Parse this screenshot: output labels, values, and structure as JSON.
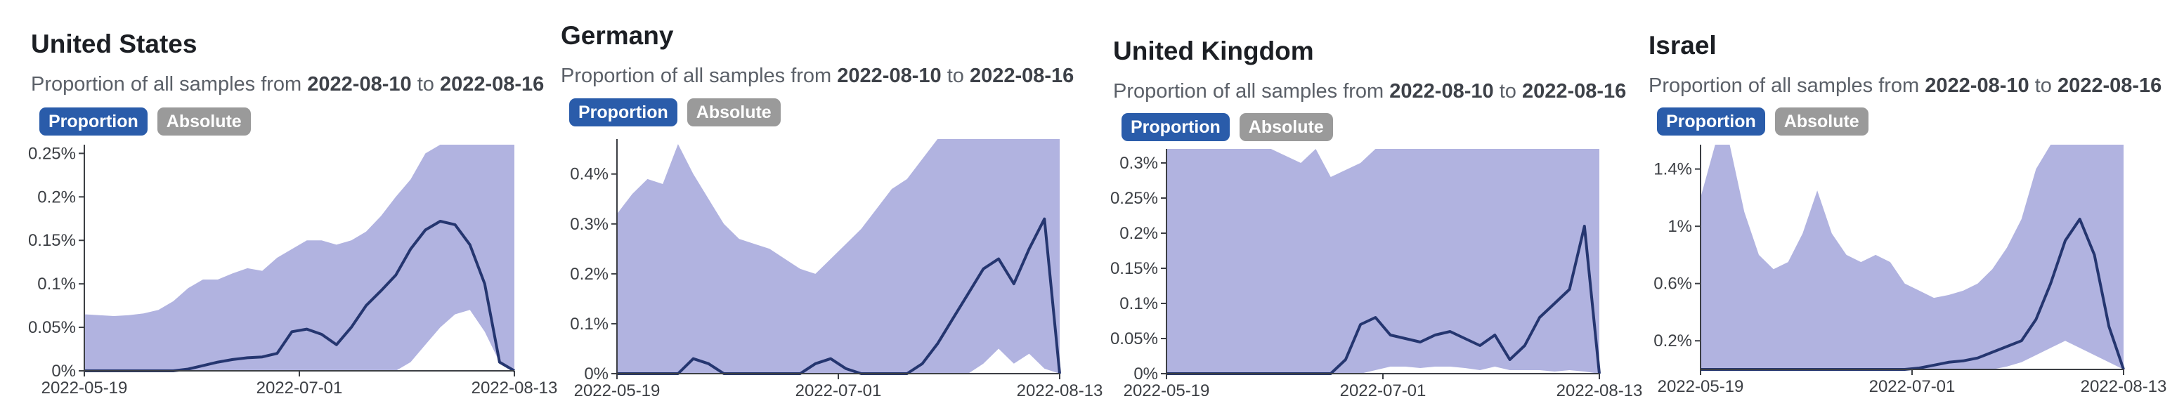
{
  "controls": {
    "proportion_label": "Proportion",
    "absolute_label": "Absolute"
  },
  "subtitle": {
    "prefix": "Proportion of all samples from",
    "start": "2022-08-10",
    "connector": "to",
    "end": "2022-08-16"
  },
  "colors": {
    "band": "#b1b3e0",
    "line": "#253670",
    "axis": "#3c3f44",
    "active": "#2a5caa",
    "inactive": "#9a9a9a"
  },
  "chart_data": [
    {
      "type": "area",
      "title": "United States",
      "x_tick_labels": [
        "2022-05-19",
        "2022-07-01",
        "2022-08-13"
      ],
      "y_tick_labels": [
        "0%",
        "0.05%",
        "0.1%",
        "0.15%",
        "0.2%",
        "0.25%"
      ],
      "ylim": [
        0,
        0.0026
      ],
      "x": [
        0,
        3,
        6,
        9,
        12,
        15,
        18,
        21,
        24,
        27,
        30,
        33,
        36,
        39,
        42,
        45,
        48,
        51,
        54,
        57,
        60,
        63,
        66,
        69,
        72,
        75,
        78,
        81,
        84,
        87
      ],
      "upper": [
        0.00065,
        0.00064,
        0.00063,
        0.00064,
        0.00066,
        0.0007,
        0.0008,
        0.00095,
        0.00105,
        0.00105,
        0.00112,
        0.00118,
        0.00115,
        0.0013,
        0.0014,
        0.0015,
        0.0015,
        0.00145,
        0.0015,
        0.0016,
        0.00178,
        0.002,
        0.0022,
        0.0025,
        0.0026,
        0.0026,
        0.0026,
        0.0026,
        0.0026,
        0.0026
      ],
      "lower": [
        0,
        0,
        0,
        0,
        0,
        0,
        0,
        0,
        0,
        0,
        0,
        0,
        0,
        0,
        0,
        0,
        0,
        0,
        0,
        0,
        0,
        0,
        0.0001,
        0.0003,
        0.0005,
        0.00065,
        0.0007,
        0.00045,
        0.0001,
        0
      ],
      "value": [
        0,
        0,
        0,
        0,
        0,
        0,
        0,
        2e-05,
        6e-05,
        0.0001,
        0.00013,
        0.00015,
        0.00016,
        0.0002,
        0.00045,
        0.00048,
        0.00042,
        0.0003,
        0.0005,
        0.00075,
        0.00092,
        0.0011,
        0.0014,
        0.00162,
        0.00172,
        0.00168,
        0.00145,
        0.001,
        0.0001,
        0
      ]
    },
    {
      "type": "area",
      "title": "Germany",
      "x_tick_labels": [
        "2022-05-19",
        "2022-07-01",
        "2022-08-13"
      ],
      "y_tick_labels": [
        "0%",
        "0.1%",
        "0.2%",
        "0.3%",
        "0.4%"
      ],
      "ylim": [
        0,
        0.0047
      ],
      "x": [
        0,
        3,
        6,
        9,
        12,
        15,
        18,
        21,
        24,
        27,
        30,
        33,
        36,
        39,
        42,
        45,
        48,
        51,
        54,
        57,
        60,
        63,
        66,
        69,
        72,
        75,
        78,
        81,
        84,
        87
      ],
      "upper": [
        0.0032,
        0.0036,
        0.0039,
        0.0038,
        0.0046,
        0.004,
        0.0035,
        0.003,
        0.0027,
        0.0026,
        0.0025,
        0.0023,
        0.0021,
        0.002,
        0.0023,
        0.0026,
        0.0029,
        0.0033,
        0.0037,
        0.0039,
        0.0043,
        0.0047,
        0.0047,
        0.0047,
        0.0047,
        0.0047,
        0.0047,
        0.0047,
        0.0047,
        0.0047
      ],
      "lower": [
        0,
        0,
        0,
        0,
        0,
        0,
        0,
        0,
        0,
        0,
        0,
        0,
        0,
        0,
        0,
        0,
        0,
        0,
        0,
        0,
        0,
        0,
        0,
        0,
        0.0002,
        0.0005,
        0.0002,
        0.0004,
        0.0001,
        0
      ],
      "value": [
        0,
        0,
        0,
        0,
        0,
        0.0003,
        0.0002,
        0,
        0,
        0,
        0,
        0,
        0,
        0.0002,
        0.0003,
        0.0001,
        0,
        0,
        0,
        0,
        0.0002,
        0.0006,
        0.0011,
        0.0016,
        0.0021,
        0.0023,
        0.0018,
        0.0025,
        0.0031,
        0
      ]
    },
    {
      "type": "area",
      "title": "United Kingdom",
      "x_tick_labels": [
        "2022-05-19",
        "2022-07-01",
        "2022-08-13"
      ],
      "y_tick_labels": [
        "0%",
        "0.05%",
        "0.1%",
        "0.15%",
        "0.2%",
        "0.25%",
        "0.3%"
      ],
      "ylim": [
        0,
        0.0032
      ],
      "x": [
        0,
        3,
        6,
        9,
        12,
        15,
        18,
        21,
        24,
        27,
        30,
        33,
        36,
        39,
        42,
        45,
        48,
        51,
        54,
        57,
        60,
        63,
        66,
        69,
        72,
        75,
        78,
        81,
        84,
        87
      ],
      "upper": [
        0.0032,
        0.0032,
        0.0032,
        0.0032,
        0.0032,
        0.0032,
        0.0032,
        0.0032,
        0.0031,
        0.003,
        0.0032,
        0.0028,
        0.0029,
        0.003,
        0.0032,
        0.0032,
        0.0032,
        0.0032,
        0.0032,
        0.0032,
        0.0032,
        0.0032,
        0.0032,
        0.0032,
        0.0032,
        0.0032,
        0.0032,
        0.0032,
        0.0032,
        0.0032
      ],
      "lower": [
        0,
        0,
        0,
        0,
        0,
        0,
        0,
        0,
        0,
        0,
        0,
        0,
        0,
        0,
        5e-05,
        0.0001,
        0.0001,
        8e-05,
        0.0001,
        0.0001,
        8e-05,
        5e-05,
        0.0001,
        5e-05,
        5e-05,
        5e-05,
        3e-05,
        5e-05,
        3e-05,
        0
      ],
      "value": [
        0,
        0,
        0,
        0,
        0,
        0,
        0,
        0,
        0,
        0,
        0,
        0,
        0.0002,
        0.0007,
        0.0008,
        0.00055,
        0.0005,
        0.00045,
        0.00055,
        0.0006,
        0.0005,
        0.0004,
        0.00055,
        0.0002,
        0.0004,
        0.0008,
        0.001,
        0.0012,
        0.0021,
        0
      ]
    },
    {
      "type": "area",
      "title": "Israel",
      "x_tick_labels": [
        "2022-05-19",
        "2022-07-01",
        "2022-08-13"
      ],
      "y_tick_labels": [
        "0.2%",
        "0.6%",
        "1%",
        "1.4%"
      ],
      "ylim": [
        0,
        0.0157
      ],
      "x": [
        0,
        3,
        6,
        9,
        12,
        15,
        18,
        21,
        24,
        27,
        30,
        33,
        36,
        39,
        42,
        45,
        48,
        51,
        54,
        57,
        60,
        63,
        66,
        69,
        72,
        75,
        78,
        81,
        84,
        87
      ],
      "upper": [
        0.012,
        0.016,
        0.016,
        0.011,
        0.008,
        0.007,
        0.0075,
        0.0095,
        0.0125,
        0.0095,
        0.008,
        0.0075,
        0.008,
        0.0075,
        0.006,
        0.0055,
        0.005,
        0.0052,
        0.0055,
        0.006,
        0.007,
        0.0085,
        0.0105,
        0.014,
        0.016,
        0.016,
        0.016,
        0.016,
        0.016,
        0.016
      ],
      "lower": [
        0,
        0,
        0,
        0,
        0,
        0,
        0,
        0,
        0,
        0,
        0,
        0,
        0,
        0,
        0,
        0,
        0,
        0,
        0,
        0,
        0,
        0.0002,
        0.0005,
        0.001,
        0.0015,
        0.002,
        0.0015,
        0.001,
        0.0005,
        0
      ],
      "value": [
        0,
        0,
        0,
        0,
        0,
        0,
        0,
        0,
        0,
        0,
        0,
        0,
        0,
        0,
        0,
        0.0001,
        0.0003,
        0.0005,
        0.0006,
        0.0008,
        0.0012,
        0.0016,
        0.002,
        0.0035,
        0.006,
        0.009,
        0.0105,
        0.008,
        0.003,
        0
      ]
    }
  ]
}
